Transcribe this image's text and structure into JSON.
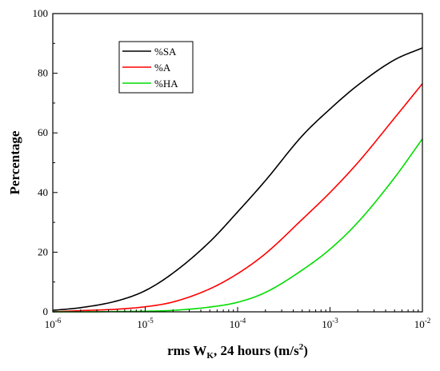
{
  "chart_data": {
    "type": "line",
    "xlabel": {
      "main": "rms W",
      "sub": "K",
      "rest": ", 24 hours (m/s",
      "sup": "2",
      "end": ")"
    },
    "ylabel": "Percentage",
    "xscale": "log",
    "xlim": [
      1e-06,
      0.01
    ],
    "ylim": [
      0,
      100
    ],
    "xticks": [
      {
        "base": "10",
        "exp": "-6"
      },
      {
        "base": "10",
        "exp": "-5"
      },
      {
        "base": "10",
        "exp": "-4"
      },
      {
        "base": "10",
        "exp": "-3"
      },
      {
        "base": "10",
        "exp": "-2"
      }
    ],
    "yticks": [
      "0",
      "20",
      "40",
      "60",
      "80",
      "100"
    ],
    "grid": false,
    "legend_position": "top-left",
    "x": [
      1e-06,
      2e-06,
      5e-06,
      1e-05,
      2e-05,
      5e-05,
      0.0001,
      0.0002,
      0.0005,
      0.001,
      0.002,
      0.005,
      0.01
    ],
    "series": [
      {
        "name": "%SA",
        "color": "#000000",
        "values": [
          0.5,
          1.4,
          3.7,
          7.1,
          13,
          23.5,
          33.5,
          44,
          59,
          68,
          76,
          84.5,
          88.5
        ]
      },
      {
        "name": "%A",
        "color": "#ff0000",
        "values": [
          0,
          0.4,
          0.9,
          1.7,
          3.3,
          7.7,
          12.8,
          19.5,
          31,
          40,
          50,
          65,
          76.5
        ]
      },
      {
        "name": "%HA",
        "color": "#00dd00",
        "values": [
          0,
          0,
          0.1,
          0.2,
          0.5,
          1.6,
          3.2,
          6.5,
          14,
          21,
          30,
          45,
          58
        ]
      }
    ]
  }
}
